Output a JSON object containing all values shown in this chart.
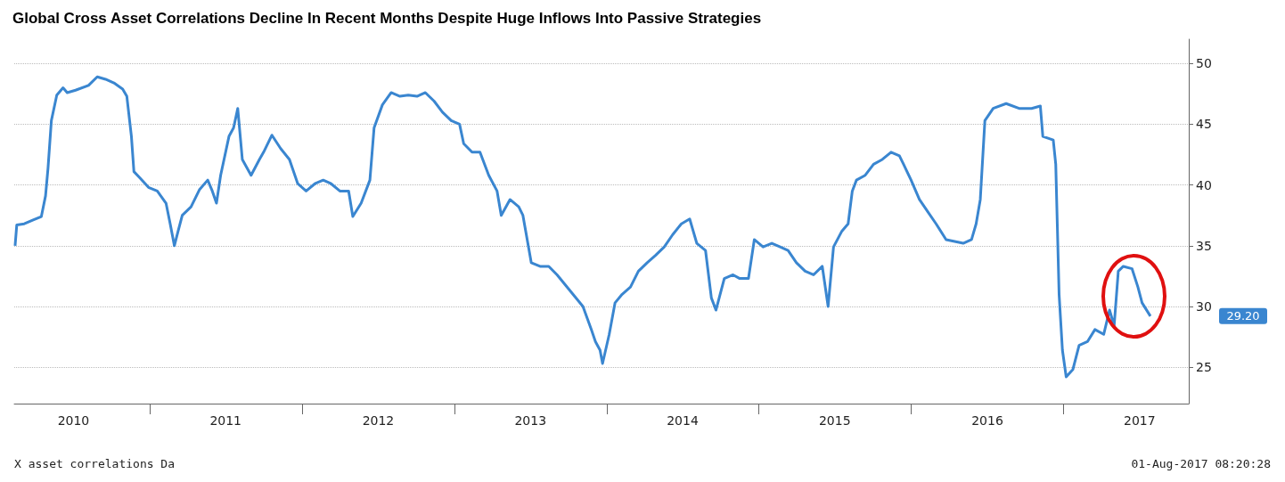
{
  "chart_data": {
    "type": "line",
    "title": "Global Cross Asset Correlations Decline In Recent Months Despite Huge Inflows Into Passive Strategies",
    "x": [
      "2010-02-12",
      "2010-02-16",
      "2010-03-06",
      "2010-03-26",
      "2010-04-16",
      "2010-04-26",
      "2010-05-02",
      "2010-05-10",
      "2010-05-23",
      "2010-06-07",
      "2010-06-17",
      "2010-07-07",
      "2010-08-07",
      "2010-08-28",
      "2010-09-17",
      "2010-10-07",
      "2010-10-28",
      "2010-11-07",
      "2010-11-18",
      "2010-11-24",
      "2010-12-08",
      "2010-12-29",
      "2011-01-19",
      "2011-02-09",
      "2011-02-19",
      "2011-03-01",
      "2011-03-10",
      "2011-03-20",
      "2011-04-10",
      "2011-04-30",
      "2011-05-20",
      "2011-05-31",
      "2011-06-10",
      "2011-06-20",
      "2011-07-10",
      "2011-07-21",
      "2011-07-31",
      "2011-08-11",
      "2011-09-01",
      "2011-09-21",
      "2011-10-01",
      "2011-10-21",
      "2011-11-11",
      "2011-12-02",
      "2011-12-22",
      "2012-01-11",
      "2012-02-01",
      "2012-02-21",
      "2012-03-11",
      "2012-04-01",
      "2012-04-22",
      "2012-05-02",
      "2012-05-22",
      "2012-06-12",
      "2012-06-22",
      "2012-07-12",
      "2012-08-02",
      "2012-08-23",
      "2012-09-12",
      "2012-10-03",
      "2012-10-23",
      "2012-11-13",
      "2012-12-03",
      "2012-12-24",
      "2013-01-13",
      "2013-01-23",
      "2013-02-12",
      "2013-03-03",
      "2013-03-24",
      "2013-04-13",
      "2013-04-23",
      "2013-05-14",
      "2013-06-04",
      "2013-06-14",
      "2013-07-04",
      "2013-07-25",
      "2013-08-15",
      "2013-09-04",
      "2013-10-05",
      "2013-11-05",
      "2013-11-25",
      "2013-12-05",
      "2013-12-16",
      "2013-12-22",
      "2014-01-07",
      "2014-01-21",
      "2014-02-07",
      "2014-02-27",
      "2014-03-18",
      "2014-04-08",
      "2014-04-28",
      "2014-05-19",
      "2014-06-08",
      "2014-06-29",
      "2014-07-19",
      "2014-08-05",
      "2014-08-26",
      "2014-09-09",
      "2014-09-20",
      "2014-10-10",
      "2014-10-31",
      "2014-11-16",
      "2014-12-07",
      "2014-12-21",
      "2015-01-11",
      "2015-02-01",
      "2015-02-21",
      "2015-03-12",
      "2015-04-01",
      "2015-04-22",
      "2015-05-12",
      "2015-06-02",
      "2015-06-16",
      "2015-06-29",
      "2015-07-19",
      "2015-08-03",
      "2015-08-13",
      "2015-08-23",
      "2015-09-13",
      "2015-10-03",
      "2015-10-24",
      "2015-11-14",
      "2015-12-04",
      "2015-12-14",
      "2016-01-01",
      "2016-01-21",
      "2016-02-10",
      "2016-03-01",
      "2016-03-25",
      "2016-05-05",
      "2016-05-25",
      "2016-06-05",
      "2016-06-15",
      "2016-06-26",
      "2016-07-16",
      "2016-08-16",
      "2016-09-16",
      "2016-10-16",
      "2016-11-06",
      "2016-11-12",
      "2016-12-07",
      "2016-12-13",
      "2016-12-21",
      "2016-12-29",
      "2017-01-07",
      "2017-01-23",
      "2017-02-07",
      "2017-02-27",
      "2017-03-17",
      "2017-04-07",
      "2017-04-21",
      "2017-05-02",
      "2017-05-12",
      "2017-05-24",
      "2017-06-14",
      "2017-06-28",
      "2017-07-08",
      "2017-07-28"
    ],
    "series": [
      {
        "color": "#3a86d0",
        "values": [
          35.0,
          36.7,
          36.8,
          37.1,
          37.4,
          39.1,
          41.4,
          45.3,
          47.4,
          48.0,
          47.6,
          47.8,
          48.2,
          48.9,
          48.7,
          48.4,
          47.9,
          47.3,
          44.0,
          41.1,
          40.6,
          39.8,
          39.5,
          38.5,
          36.8,
          35.0,
          36.2,
          37.5,
          38.2,
          39.6,
          40.4,
          39.5,
          38.5,
          40.8,
          44.0,
          44.7,
          46.3,
          42.1,
          40.8,
          42.1,
          42.7,
          44.1,
          43.0,
          42.1,
          40.1,
          39.5,
          40.1,
          40.4,
          40.1,
          39.5,
          39.5,
          37.4,
          38.5,
          40.4,
          44.7,
          46.6,
          47.6,
          47.3,
          47.4,
          47.3,
          47.6,
          46.9,
          46.0,
          45.3,
          45.0,
          43.4,
          42.7,
          42.7,
          40.8,
          39.5,
          37.5,
          38.8,
          38.2,
          37.5,
          33.6,
          33.3,
          33.3,
          32.6,
          31.3,
          30.0,
          28.1,
          27.1,
          26.4,
          25.3,
          27.7,
          30.3,
          31.0,
          31.6,
          32.9,
          33.6,
          34.2,
          34.9,
          35.9,
          36.8,
          37.2,
          35.2,
          34.6,
          30.7,
          29.7,
          32.3,
          32.6,
          32.3,
          32.3,
          35.5,
          34.9,
          35.2,
          34.9,
          34.6,
          33.6,
          32.9,
          32.6,
          33.3,
          30.0,
          34.9,
          36.2,
          36.8,
          39.5,
          40.4,
          40.8,
          41.7,
          42.1,
          42.7,
          42.4,
          41.7,
          40.4,
          38.8,
          37.8,
          36.8,
          35.5,
          35.2,
          35.5,
          36.8,
          38.8,
          45.3,
          46.3,
          46.7,
          46.3,
          46.3,
          46.5,
          44.0,
          43.7,
          41.7,
          31.0,
          26.4,
          24.2,
          24.8,
          26.8,
          27.1,
          28.1,
          27.7,
          29.7,
          28.4,
          32.9,
          33.3,
          33.1,
          31.6,
          30.3,
          29.2
        ]
      }
    ],
    "xlim": [
      "2010-02-10",
      "2017-10-28"
    ],
    "xticks": [
      {
        "value": "2010-07-02",
        "label": "2010"
      },
      {
        "value": "2011-01-01",
        "label": null
      },
      {
        "value": "2011-07-02",
        "label": "2011"
      },
      {
        "value": "2012-01-01",
        "label": null
      },
      {
        "value": "2012-07-02",
        "label": "2012"
      },
      {
        "value": "2013-01-01",
        "label": null
      },
      {
        "value": "2013-07-02",
        "label": "2013"
      },
      {
        "value": "2014-01-01",
        "label": null
      },
      {
        "value": "2014-07-02",
        "label": "2014"
      },
      {
        "value": "2015-01-01",
        "label": null
      },
      {
        "value": "2015-07-02",
        "label": "2015"
      },
      {
        "value": "2016-01-01",
        "label": null
      },
      {
        "value": "2016-07-02",
        "label": "2016"
      },
      {
        "value": "2017-01-01",
        "label": null
      },
      {
        "value": "2017-07-02",
        "label": "2017"
      }
    ],
    "ylim": [
      22,
      52
    ],
    "yticks": [
      25,
      30,
      35,
      40,
      45,
      50
    ],
    "grid": "y",
    "marker": "none",
    "annotations": [
      "29.20",
      "X asset correlations Da",
      "01-Aug-2017 08:20:28"
    ]
  }
}
